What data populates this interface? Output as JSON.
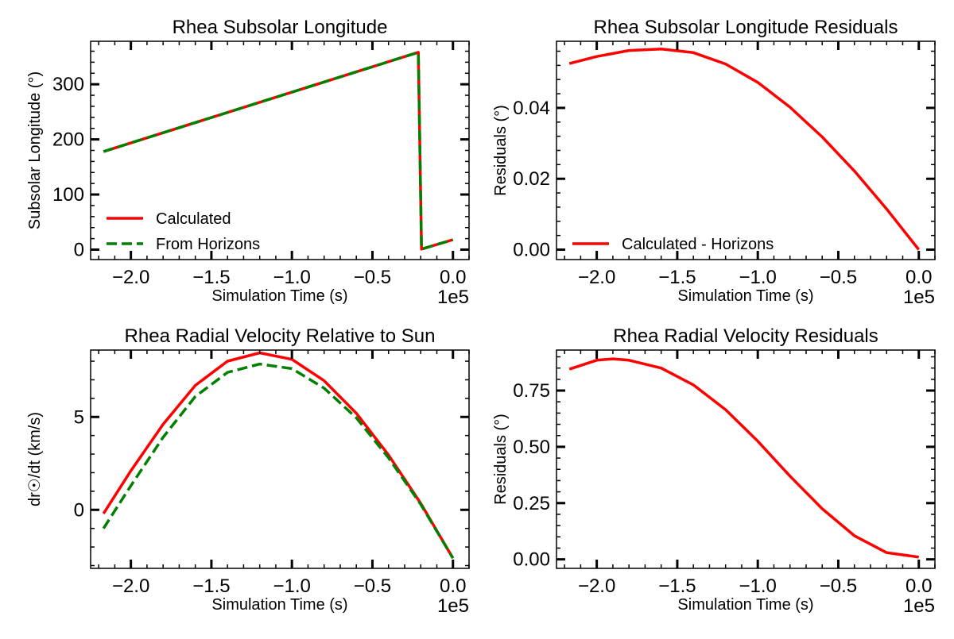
{
  "colors": {
    "calculated": "#ff0000",
    "horizons": "#008000",
    "axes": "#000000"
  },
  "chart_data": [
    {
      "type": "line",
      "title": "Rhea Subsolar Longitude",
      "xlabel": "Simulation Time (s)",
      "ylabel": "Subsolar Longitude (°)",
      "x_offset_label": "1e5",
      "xlim": [
        -2.25,
        0.1
      ],
      "ylim": [
        -18,
        378
      ],
      "xticks": [
        -2.0,
        -1.5,
        -1.0,
        -0.5,
        0.0
      ],
      "xtick_labels": [
        "−2.0",
        "−1.5",
        "−1.0",
        "−0.5",
        "0.0"
      ],
      "xminor_step": 0.1,
      "yticks": [
        0,
        100,
        200,
        300
      ],
      "ytick_labels": [
        "0",
        "100",
        "200",
        "300"
      ],
      "yminor_step": 20,
      "legend": {
        "position": "lower-left",
        "entries": [
          "Calculated",
          "From Horizons"
        ]
      },
      "series": [
        {
          "name": "Calculated",
          "color": "#ff0000",
          "style": "solid",
          "x": [
            -2.17,
            -0.215,
            -0.195,
            0.0
          ],
          "y": [
            178,
            358,
            1,
            18
          ]
        },
        {
          "name": "From Horizons",
          "color": "#008000",
          "style": "dashed",
          "x": [
            -2.17,
            -0.215,
            -0.195,
            0.0
          ],
          "y": [
            178,
            358,
            1,
            18
          ]
        }
      ]
    },
    {
      "type": "line",
      "title": "Rhea Subsolar Longitude Residuals",
      "xlabel": "Simulation Time (s)",
      "ylabel": "Residuals (°)",
      "x_offset_label": "1e5",
      "xlim": [
        -2.25,
        0.1
      ],
      "ylim": [
        -0.0028,
        0.0588
      ],
      "xticks": [
        -2.0,
        -1.5,
        -1.0,
        -0.5,
        0.0
      ],
      "xtick_labels": [
        "−2.0",
        "−1.5",
        "−1.0",
        "−0.5",
        "0.0"
      ],
      "xminor_step": 0.1,
      "yticks": [
        0.0,
        0.02,
        0.04
      ],
      "ytick_labels": [
        "0.00",
        "0.02",
        "0.04"
      ],
      "yminor_step": 0.004,
      "legend": {
        "position": "lower-left",
        "entries": [
          "Calculated - Horizons"
        ]
      },
      "series": [
        {
          "name": "Calculated - Horizons",
          "color": "#ff0000",
          "style": "solid",
          "x": [
            -2.17,
            -2.0,
            -1.8,
            -1.6,
            -1.4,
            -1.2,
            -1.0,
            -0.8,
            -0.6,
            -0.4,
            -0.2,
            0.0
          ],
          "y": [
            0.0525,
            0.0545,
            0.0562,
            0.0566,
            0.0556,
            0.0524,
            0.0472,
            0.0402,
            0.0318,
            0.0222,
            0.0115,
            0.0
          ]
        }
      ]
    },
    {
      "type": "line",
      "title": "Rhea Radial Velocity Relative to Sun",
      "xlabel": "Simulation Time (s)",
      "ylabel": "dr☉/dt (km/s)",
      "x_offset_label": "1e5",
      "xlim": [
        -2.25,
        0.1
      ],
      "ylim": [
        -3.15,
        8.6
      ],
      "xticks": [
        -2.0,
        -1.5,
        -1.0,
        -0.5,
        0.0
      ],
      "xtick_labels": [
        "−2.0",
        "−1.5",
        "−1.0",
        "−0.5",
        "0.0"
      ],
      "xminor_step": 0.1,
      "yticks": [
        0,
        5
      ],
      "ytick_labels": [
        "0",
        "5"
      ],
      "yminor_step": 1,
      "legend": null,
      "series": [
        {
          "name": "Calculated",
          "color": "#ff0000",
          "style": "solid",
          "x": [
            -2.17,
            -2.0,
            -1.8,
            -1.6,
            -1.4,
            -1.2,
            -1.0,
            -0.8,
            -0.6,
            -0.4,
            -0.2,
            0.0
          ],
          "y": [
            -0.2,
            2.1,
            4.6,
            6.7,
            8.0,
            8.45,
            8.1,
            6.95,
            5.2,
            2.95,
            0.35,
            -2.6
          ]
        },
        {
          "name": "From Horizons",
          "color": "#008000",
          "style": "dashed",
          "x": [
            -2.17,
            -2.0,
            -1.8,
            -1.6,
            -1.4,
            -1.2,
            -1.0,
            -0.8,
            -0.6,
            -0.4,
            -0.2,
            0.0
          ],
          "y": [
            -1.0,
            1.3,
            3.9,
            6.1,
            7.4,
            7.85,
            7.6,
            6.55,
            4.95,
            2.8,
            0.3,
            -2.6
          ]
        }
      ]
    },
    {
      "type": "line",
      "title": "Rhea Radial Velocity Residuals",
      "xlabel": "Simulation Time (s)",
      "ylabel": "Residuals (°)",
      "x_offset_label": "1e5",
      "xlim": [
        -2.25,
        0.1
      ],
      "ylim": [
        -0.04,
        0.93
      ],
      "xticks": [
        -2.0,
        -1.5,
        -1.0,
        -0.5,
        0.0
      ],
      "xtick_labels": [
        "−2.0",
        "−1.5",
        "−1.0",
        "−0.5",
        "0.0"
      ],
      "xminor_step": 0.1,
      "yticks": [
        0.0,
        0.25,
        0.5,
        0.75
      ],
      "ytick_labels": [
        "0.00",
        "0.25",
        "0.50",
        "0.75"
      ],
      "yminor_step": 0.05,
      "legend": null,
      "series": [
        {
          "name": "Calculated - Horizons",
          "color": "#ff0000",
          "style": "solid",
          "x": [
            -2.17,
            -2.0,
            -1.9,
            -1.8,
            -1.6,
            -1.4,
            -1.2,
            -1.0,
            -0.8,
            -0.6,
            -0.4,
            -0.2,
            0.0
          ],
          "y": [
            0.845,
            0.885,
            0.891,
            0.885,
            0.85,
            0.775,
            0.665,
            0.525,
            0.37,
            0.225,
            0.105,
            0.03,
            0.01
          ]
        }
      ]
    }
  ]
}
